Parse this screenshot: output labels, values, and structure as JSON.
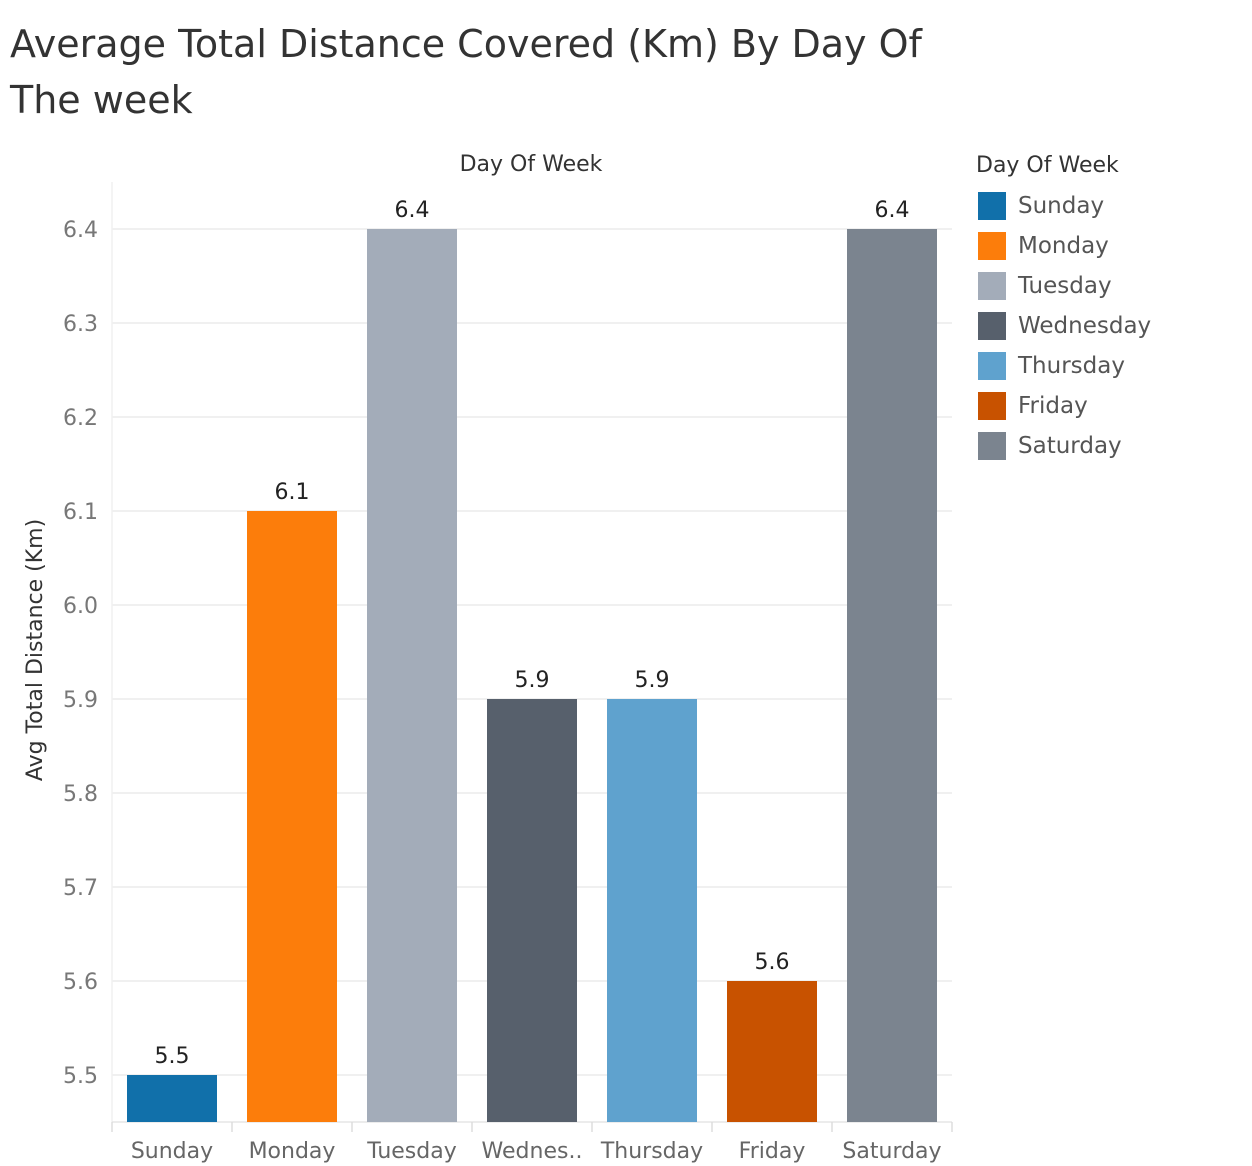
{
  "title": "Average Total Distance Covered (Km) By Day Of The week",
  "chart_data": {
    "type": "bar",
    "title": "Average Total Distance Covered (Km) By Day Of The week",
    "xlabel": "Day Of Week",
    "ylabel": "Avg Total Distance (Km)",
    "categories": [
      "Sunday",
      "Monday",
      "Tuesday",
      "Wednesday",
      "Thursday",
      "Friday",
      "Saturday"
    ],
    "tick_labels_x": [
      "Sunday",
      "Monday",
      "Tuesday",
      "Wednes..",
      "Thursday",
      "Friday",
      "Saturday"
    ],
    "values": [
      5.5,
      6.1,
      6.4,
      5.9,
      5.9,
      5.6,
      6.4
    ],
    "data_labels": [
      "5.5",
      "6.1",
      "6.4",
      "5.9",
      "5.9",
      "5.6",
      "6.4"
    ],
    "colors": [
      "#1170aa",
      "#fc7d0b",
      "#a3acb9",
      "#57606c",
      "#5fa2ce",
      "#c85200",
      "#7b848f"
    ],
    "ylim": [
      5.45,
      6.45
    ],
    "y_ticks": [
      5.5,
      5.6,
      5.7,
      5.8,
      5.9,
      6.0,
      6.1,
      6.2,
      6.3,
      6.4
    ],
    "y_tick_labels": [
      "5.5",
      "5.6",
      "5.7",
      "5.8",
      "5.9",
      "6.0",
      "6.1",
      "6.2",
      "6.3",
      "6.4"
    ],
    "grid": true,
    "legend": {
      "title": "Day Of Week",
      "placement": "right",
      "items": [
        "Sunday",
        "Monday",
        "Tuesday",
        "Wednesday",
        "Thursday",
        "Friday",
        "Saturday"
      ]
    }
  }
}
